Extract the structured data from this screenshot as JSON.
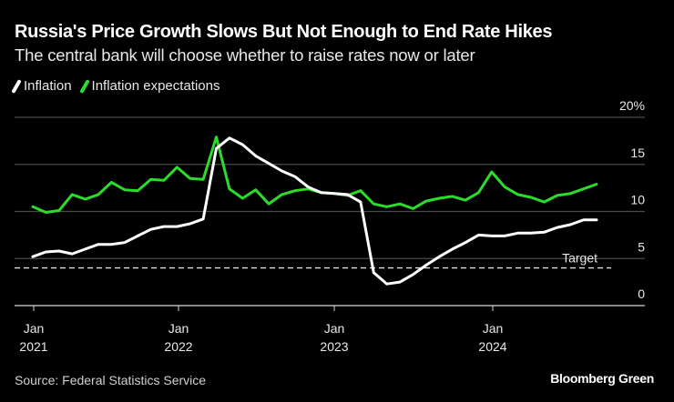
{
  "header": {
    "title": "Russia's Price Growth Slows But Not Enough to End Rate Hikes",
    "subtitle": "The central bank will choose whether to raise rates now or later"
  },
  "footer": {
    "source": "Source: Federal Statistics Service",
    "brand": "Bloomberg Green"
  },
  "chart_data": {
    "type": "line",
    "title": "Russia's Price Growth Slows But Not Enough to End Rate Hikes",
    "subtitle": "The central bank will choose whether to raise rates now or later",
    "xlabel": "",
    "ylabel": "",
    "ylim": [
      0,
      20
    ],
    "yticks": [
      0,
      5,
      10,
      15,
      20
    ],
    "ytick_labels": [
      "0",
      "5",
      "10",
      "15",
      "20%"
    ],
    "xticks": [
      {
        "index": 0,
        "line1": "Jan",
        "line2": "2021"
      },
      {
        "index": 12,
        "line1": "Jan",
        "line2": "2022"
      },
      {
        "index": 24,
        "line1": "Jan",
        "line2": "2023"
      },
      {
        "index": 36,
        "line1": "Jan",
        "line2": "2024"
      }
    ],
    "grid": true,
    "legend_position": "top-left",
    "x": [
      "2021-01",
      "2021-02",
      "2021-03",
      "2021-04",
      "2021-05",
      "2021-06",
      "2021-07",
      "2021-08",
      "2021-09",
      "2021-10",
      "2021-11",
      "2021-12",
      "2022-01",
      "2022-02",
      "2022-03",
      "2022-04",
      "2022-05",
      "2022-06",
      "2022-07",
      "2022-08",
      "2022-09",
      "2022-10",
      "2022-11",
      "2022-12",
      "2023-01",
      "2023-02",
      "2023-03",
      "2023-04",
      "2023-05",
      "2023-06",
      "2023-07",
      "2023-08",
      "2023-09",
      "2023-10",
      "2023-11",
      "2023-12",
      "2024-01",
      "2024-02",
      "2024-03",
      "2024-04",
      "2024-05",
      "2024-06",
      "2024-07",
      "2024-08"
    ],
    "series": [
      {
        "name": "Inflation",
        "color": "#ffffff",
        "values": [
          5.2,
          5.7,
          5.8,
          5.5,
          6.0,
          6.5,
          6.5,
          6.7,
          7.4,
          8.1,
          8.4,
          8.4,
          8.7,
          9.2,
          16.7,
          17.8,
          17.1,
          15.9,
          15.1,
          14.3,
          13.7,
          12.6,
          12.0,
          11.9,
          11.8,
          11.0,
          3.5,
          2.3,
          2.5,
          3.3,
          4.3,
          5.2,
          6.0,
          6.7,
          7.5,
          7.4,
          7.4,
          7.7,
          7.7,
          7.8,
          8.3,
          8.6,
          9.1,
          9.1
        ]
      },
      {
        "name": "Inflation expectations",
        "color": "#2bdc2b",
        "values": [
          10.5,
          9.9,
          10.1,
          11.8,
          11.3,
          11.8,
          13.1,
          12.3,
          12.2,
          13.4,
          13.3,
          14.7,
          13.5,
          13.4,
          17.9,
          12.4,
          11.4,
          12.3,
          10.8,
          11.8,
          12.2,
          12.4,
          12.0,
          11.9,
          11.7,
          12.2,
          10.8,
          10.5,
          10.8,
          10.3,
          11.1,
          11.4,
          11.6,
          11.2,
          12.0,
          14.2,
          12.6,
          11.8,
          11.5,
          11.0,
          11.7,
          11.9,
          12.4,
          12.9
        ]
      }
    ],
    "annotations": [
      {
        "label": "Target",
        "value": 4,
        "style": "dashed"
      }
    ]
  }
}
